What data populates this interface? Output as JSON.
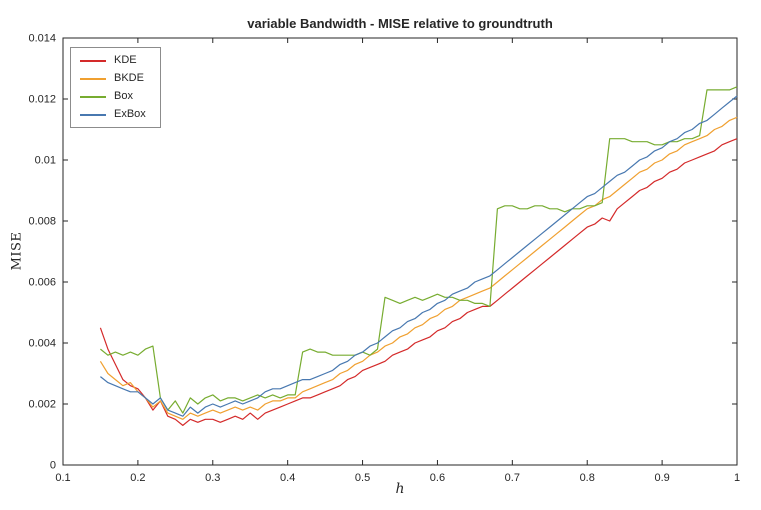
{
  "chart_data": {
    "type": "line",
    "title": "variable Bandwidth - MISE relative to groundtruth",
    "xlabel": "h",
    "ylabel": "MISE",
    "xlim": [
      0.1,
      1
    ],
    "ylim": [
      0,
      0.014
    ],
    "xticks": [
      0.1,
      0.2,
      0.3,
      0.4,
      0.5,
      0.6,
      0.7,
      0.8,
      0.9,
      1
    ],
    "xtick_labels": [
      "0.1",
      "0.2",
      "0.3",
      "0.4",
      "0.5",
      "0.6",
      "0.7",
      "0.8",
      "0.9",
      "1"
    ],
    "yticks": [
      0,
      0.002,
      0.004,
      0.006,
      0.008,
      0.01,
      0.012,
      0.014
    ],
    "ytick_labels": [
      "0",
      "0.002",
      "0.004",
      "0.006",
      "0.008",
      "0.01",
      "0.012",
      "0.014"
    ],
    "grid": false,
    "legend_position": "top-left",
    "axis_color": "#262626",
    "x": [
      0.15,
      0.16,
      0.17,
      0.18,
      0.19,
      0.2,
      0.21,
      0.22,
      0.23,
      0.24,
      0.25,
      0.26,
      0.27,
      0.28,
      0.29,
      0.3,
      0.31,
      0.32,
      0.33,
      0.34,
      0.35,
      0.36,
      0.37,
      0.38,
      0.39,
      0.4,
      0.41,
      0.42,
      0.43,
      0.44,
      0.45,
      0.46,
      0.47,
      0.48,
      0.49,
      0.5,
      0.51,
      0.52,
      0.53,
      0.54,
      0.55,
      0.56,
      0.57,
      0.58,
      0.59,
      0.6,
      0.61,
      0.62,
      0.63,
      0.64,
      0.65,
      0.66,
      0.67,
      0.68,
      0.69,
      0.7,
      0.71,
      0.72,
      0.73,
      0.74,
      0.75,
      0.76,
      0.77,
      0.78,
      0.79,
      0.8,
      0.81,
      0.82,
      0.83,
      0.84,
      0.85,
      0.86,
      0.87,
      0.88,
      0.89,
      0.9,
      0.91,
      0.92,
      0.93,
      0.94,
      0.95,
      0.96,
      0.97,
      0.98,
      0.99,
      1.0
    ],
    "series": [
      {
        "name": "KDE",
        "color": "#d42a2a",
        "values": [
          0.0045,
          0.0038,
          0.0033,
          0.0028,
          0.0026,
          0.0025,
          0.0022,
          0.0018,
          0.0021,
          0.0016,
          0.0015,
          0.0013,
          0.0015,
          0.0014,
          0.0015,
          0.0015,
          0.0014,
          0.0015,
          0.0016,
          0.0015,
          0.0017,
          0.0015,
          0.0017,
          0.0018,
          0.0019,
          0.002,
          0.0021,
          0.0022,
          0.0022,
          0.0023,
          0.0024,
          0.0025,
          0.0026,
          0.0028,
          0.0029,
          0.0031,
          0.0032,
          0.0033,
          0.0034,
          0.0036,
          0.0037,
          0.0038,
          0.004,
          0.0041,
          0.0042,
          0.0044,
          0.0045,
          0.0047,
          0.0048,
          0.005,
          0.0051,
          0.0052,
          0.0052,
          0.0054,
          0.0056,
          0.0058,
          0.006,
          0.0062,
          0.0064,
          0.0066,
          0.0068,
          0.007,
          0.0072,
          0.0074,
          0.0076,
          0.0078,
          0.0079,
          0.0081,
          0.008,
          0.0084,
          0.0086,
          0.0088,
          0.009,
          0.0091,
          0.0093,
          0.0094,
          0.0096,
          0.0097,
          0.0099,
          0.01,
          0.0101,
          0.0102,
          0.0103,
          0.0105,
          0.0106,
          0.0107
        ]
      },
      {
        "name": "BKDE",
        "color": "#f0a030",
        "values": [
          0.0034,
          0.003,
          0.0028,
          0.0026,
          0.0027,
          0.0024,
          0.0022,
          0.0019,
          0.0021,
          0.0017,
          0.0016,
          0.0015,
          0.0017,
          0.0016,
          0.0017,
          0.0018,
          0.0017,
          0.0018,
          0.0019,
          0.0018,
          0.0019,
          0.0018,
          0.002,
          0.0021,
          0.0021,
          0.0022,
          0.0022,
          0.0024,
          0.0025,
          0.0026,
          0.0027,
          0.0028,
          0.003,
          0.0031,
          0.0033,
          0.0034,
          0.0036,
          0.0037,
          0.0039,
          0.004,
          0.0042,
          0.0043,
          0.0045,
          0.0046,
          0.0048,
          0.0049,
          0.0051,
          0.0052,
          0.0054,
          0.0055,
          0.0056,
          0.0057,
          0.0058,
          0.006,
          0.0062,
          0.0064,
          0.0066,
          0.0068,
          0.007,
          0.0072,
          0.0074,
          0.0076,
          0.0078,
          0.008,
          0.0082,
          0.0084,
          0.0085,
          0.0087,
          0.0088,
          0.009,
          0.0092,
          0.0094,
          0.0096,
          0.0097,
          0.0099,
          0.01,
          0.0102,
          0.0103,
          0.0105,
          0.0106,
          0.0107,
          0.0108,
          0.011,
          0.0111,
          0.0113,
          0.0114
        ]
      },
      {
        "name": "Box",
        "color": "#77ac30",
        "values": [
          0.0038,
          0.0036,
          0.0037,
          0.0036,
          0.0037,
          0.0036,
          0.0038,
          0.0039,
          0.0022,
          0.0018,
          0.0021,
          0.0017,
          0.0022,
          0.002,
          0.0022,
          0.0023,
          0.0021,
          0.0022,
          0.0022,
          0.0021,
          0.0022,
          0.0023,
          0.0022,
          0.0023,
          0.0022,
          0.0023,
          0.0023,
          0.0037,
          0.0038,
          0.0037,
          0.0037,
          0.0036,
          0.0036,
          0.0036,
          0.0036,
          0.0037,
          0.0036,
          0.0038,
          0.0055,
          0.0054,
          0.0053,
          0.0054,
          0.0055,
          0.0054,
          0.0055,
          0.0056,
          0.0055,
          0.0055,
          0.0054,
          0.0054,
          0.0053,
          0.0053,
          0.0052,
          0.0084,
          0.0085,
          0.0085,
          0.0084,
          0.0084,
          0.0085,
          0.0085,
          0.0084,
          0.0084,
          0.0083,
          0.0084,
          0.0084,
          0.0085,
          0.0085,
          0.0086,
          0.0107,
          0.0107,
          0.0107,
          0.0106,
          0.0106,
          0.0106,
          0.0105,
          0.0105,
          0.0106,
          0.0106,
          0.0107,
          0.0107,
          0.0108,
          0.0123,
          0.0123,
          0.0123,
          0.0123,
          0.0124
        ]
      },
      {
        "name": "ExBox",
        "color": "#4878b0",
        "values": [
          0.0029,
          0.0027,
          0.0026,
          0.0025,
          0.0024,
          0.0024,
          0.0022,
          0.002,
          0.0022,
          0.0018,
          0.0017,
          0.0016,
          0.0019,
          0.0017,
          0.0019,
          0.002,
          0.0019,
          0.002,
          0.0021,
          0.002,
          0.0021,
          0.0022,
          0.0024,
          0.0025,
          0.0025,
          0.0026,
          0.0027,
          0.0028,
          0.0028,
          0.0029,
          0.003,
          0.0031,
          0.0033,
          0.0034,
          0.0036,
          0.0037,
          0.0039,
          0.004,
          0.0042,
          0.0044,
          0.0045,
          0.0047,
          0.0048,
          0.005,
          0.0051,
          0.0053,
          0.0054,
          0.0056,
          0.0057,
          0.0058,
          0.006,
          0.0061,
          0.0062,
          0.0064,
          0.0066,
          0.0068,
          0.007,
          0.0072,
          0.0074,
          0.0076,
          0.0078,
          0.008,
          0.0082,
          0.0084,
          0.0086,
          0.0088,
          0.0089,
          0.0091,
          0.0093,
          0.0095,
          0.0096,
          0.0098,
          0.01,
          0.0101,
          0.0103,
          0.0104,
          0.0106,
          0.0107,
          0.0109,
          0.011,
          0.0112,
          0.0113,
          0.0115,
          0.0117,
          0.0119,
          0.0121
        ]
      }
    ]
  }
}
